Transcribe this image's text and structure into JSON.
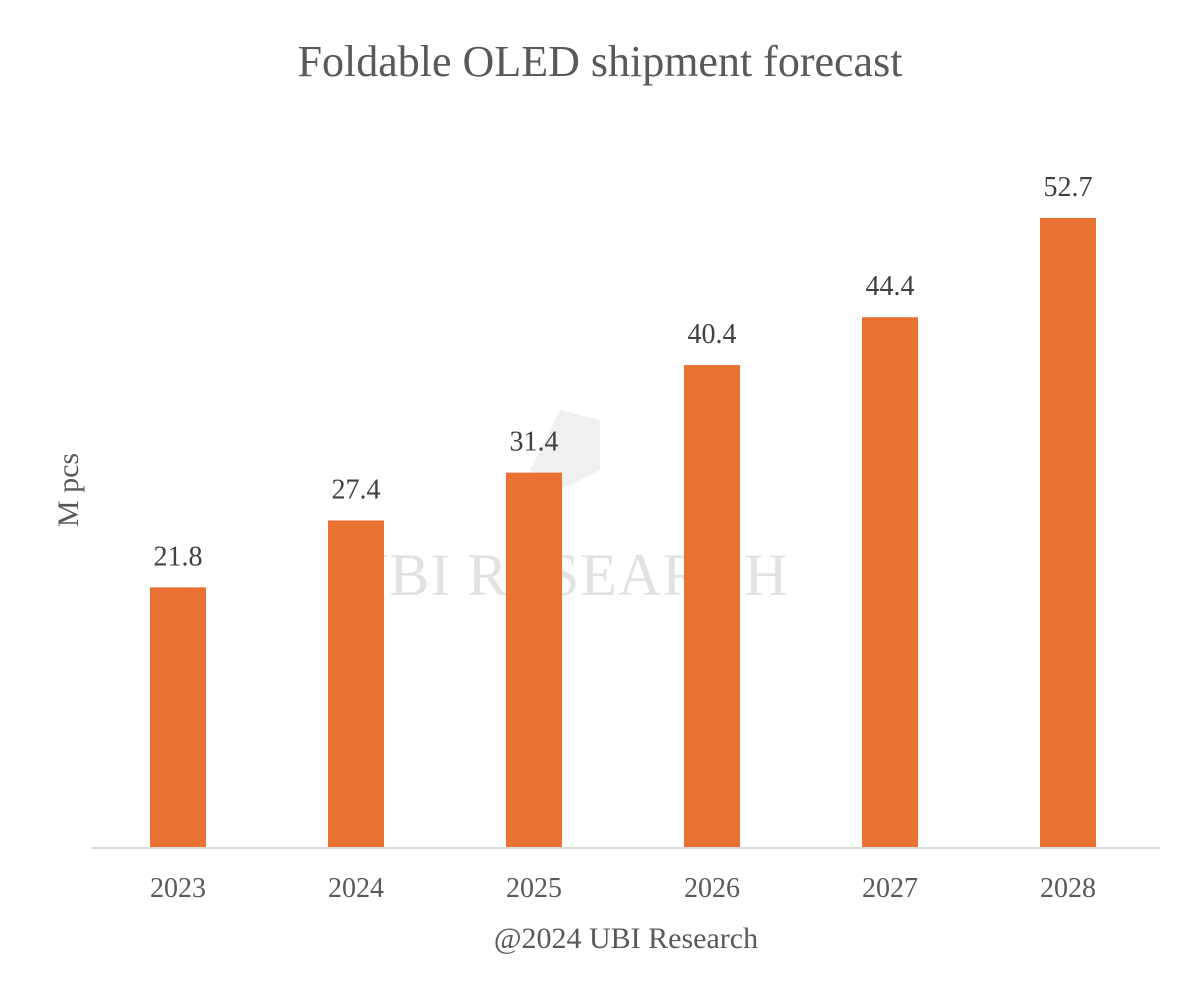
{
  "chart_data": {
    "type": "bar",
    "title": "Foldable OLED shipment forecast",
    "xlabel": "@2024 UBI Research",
    "ylabel": "M pcs",
    "categories": [
      "2023",
      "2024",
      "2025",
      "2026",
      "2027",
      "2028"
    ],
    "values": [
      21.8,
      27.4,
      31.4,
      40.4,
      44.4,
      52.7
    ],
    "data_labels": [
      "21.8",
      "27.4",
      "31.4",
      "40.4",
      "44.4",
      "52.7"
    ],
    "ylim": [
      0,
      60
    ],
    "grid": false,
    "legend": "none",
    "colors": {
      "bar": "#E97132",
      "axis": "#d9d9d9",
      "text": "#595959"
    },
    "watermark": "UBI RESEARCH"
  }
}
